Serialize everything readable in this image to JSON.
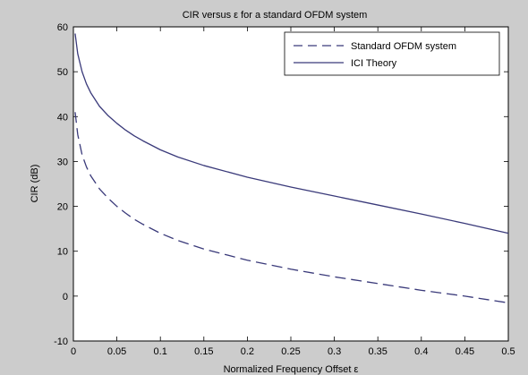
{
  "chart_data": {
    "type": "line",
    "title": "CIR versus ε for a standard OFDM system",
    "xlabel": "Normalized Frequency Offset ε",
    "ylabel": "CIR (dB)",
    "xlim": [
      0,
      0.5
    ],
    "ylim": [
      -10,
      60
    ],
    "xticks": [
      0,
      0.05,
      0.1,
      0.15,
      0.2,
      0.25,
      0.3,
      0.35,
      0.4,
      0.45,
      0.5
    ],
    "xtick_labels": [
      "0",
      "0.05",
      "0.1",
      "0.15",
      "0.2",
      "0.25",
      "0.3",
      "0.35",
      "0.4",
      "0.45",
      "0.5"
    ],
    "yticks": [
      -10,
      0,
      10,
      20,
      30,
      40,
      50,
      60
    ],
    "ytick_labels": [
      "-10",
      "0",
      "10",
      "20",
      "30",
      "40",
      "50",
      "60"
    ],
    "grid": false,
    "legend_position": "top-right",
    "series": [
      {
        "name": "Standard OFDM system",
        "style": "dashed",
        "color": "#3a3a7a",
        "x": [
          0.002,
          0.005,
          0.01,
          0.015,
          0.02,
          0.03,
          0.04,
          0.05,
          0.06,
          0.07,
          0.08,
          0.1,
          0.12,
          0.15,
          0.2,
          0.25,
          0.3,
          0.35,
          0.4,
          0.45,
          0.5
        ],
        "y": [
          41,
          36,
          31.5,
          28.8,
          26.8,
          23.9,
          21.8,
          20,
          18.5,
          17.1,
          16,
          14,
          12.4,
          10.5,
          8,
          6,
          4.3,
          2.8,
          1.3,
          0,
          -1.5
        ]
      },
      {
        "name": "ICI Theory",
        "style": "solid",
        "color": "#3a3a7a",
        "x": [
          0.002,
          0.005,
          0.01,
          0.015,
          0.02,
          0.03,
          0.04,
          0.05,
          0.06,
          0.07,
          0.08,
          0.1,
          0.12,
          0.15,
          0.2,
          0.25,
          0.3,
          0.35,
          0.4,
          0.45,
          0.5
        ],
        "y": [
          58.5,
          54,
          50,
          47.3,
          45.3,
          42.3,
          40.2,
          38.5,
          37,
          35.7,
          34.6,
          32.6,
          31,
          29.1,
          26.5,
          24.3,
          22.3,
          20.3,
          18.3,
          16.2,
          14
        ]
      }
    ]
  }
}
